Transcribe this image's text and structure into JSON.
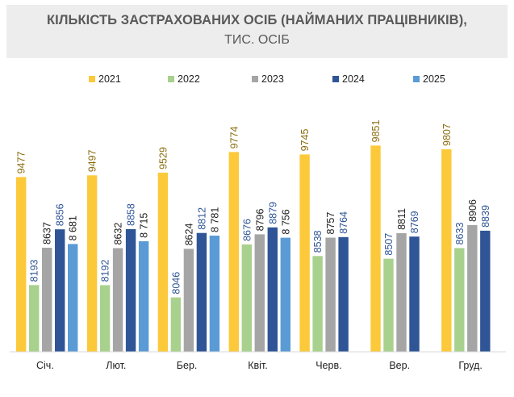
{
  "chart_data": {
    "type": "bar",
    "title": "КІЛЬКІСТЬ ЗАСТРАХОВАНИХ ОСІБ (НАЙМАНИХ ПРАЦІВНИКІВ),",
    "subtitle": "ТИС. ОСІБ",
    "categories": [
      "Січ.",
      "Лют.",
      "Бер.",
      "Квіт.",
      "Черв.",
      "Вер.",
      "Груд."
    ],
    "ylim": [
      7400,
      10200
    ],
    "series": [
      {
        "name": "2021",
        "color": "#fcc93b",
        "label_color": "#8a6d0f",
        "values": [
          9477,
          9497,
          9529,
          9774,
          9745,
          9851,
          9807
        ],
        "labels": [
          "9477",
          "9497",
          "9529",
          "9774",
          "9745",
          "9851",
          "9807"
        ]
      },
      {
        "name": "2022",
        "color": "#a9d18e",
        "label_color": "#2f5597",
        "values": [
          8193,
          8192,
          8046,
          8676,
          8538,
          8507,
          8633
        ],
        "labels": [
          "8193",
          "8192",
          "8046",
          "8676",
          "8538",
          "8507",
          "8633"
        ]
      },
      {
        "name": "2023",
        "color": "#a5a5a5",
        "label_color": "#222222",
        "values": [
          8637,
          8632,
          8624,
          8796,
          8757,
          8811,
          8906
        ],
        "labels": [
          "8637",
          "8632",
          "8624",
          "8796",
          "8757",
          "8811",
          "8906"
        ]
      },
      {
        "name": "2024",
        "color": "#2f5597",
        "label_color": "#2f5597",
        "values": [
          8856,
          8858,
          8812,
          8879,
          8764,
          8769,
          8839
        ],
        "labels": [
          "8856",
          "8858",
          "8812",
          "8879",
          "8764",
          "8769",
          "8839"
        ]
      },
      {
        "name": "2025",
        "color": "#5b9bd5",
        "label_color": "#222222",
        "values": [
          8681,
          8715,
          8781,
          8756,
          null,
          null,
          null
        ],
        "labels": [
          "8 681",
          "8 715",
          "8 781",
          "8 756",
          null,
          null,
          null
        ]
      }
    ],
    "legend": "top"
  }
}
